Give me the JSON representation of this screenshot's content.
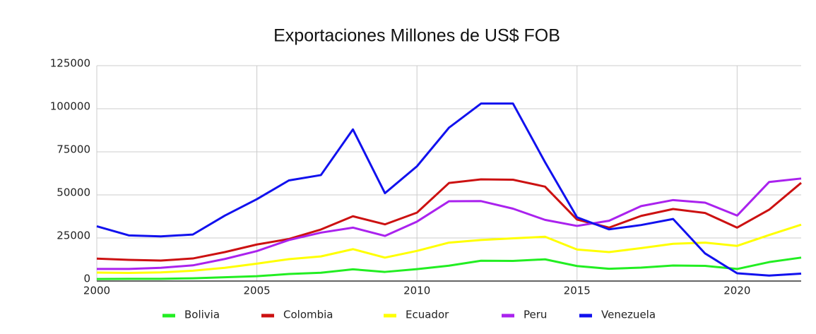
{
  "chart_data": {
    "type": "line",
    "title": "Exportaciones Millones de US$ FOB",
    "x": [
      2000,
      2001,
      2002,
      2003,
      2004,
      2005,
      2006,
      2007,
      2008,
      2009,
      2010,
      2011,
      2012,
      2013,
      2014,
      2015,
      2016,
      2017,
      2018,
      2019,
      2020,
      2021,
      2022
    ],
    "xlim": [
      2000,
      2022
    ],
    "xticks": [
      2000,
      2005,
      2010,
      2015,
      2020
    ],
    "ylim": [
      0,
      125000
    ],
    "yticks": [
      0,
      25000,
      50000,
      75000,
      100000,
      125000
    ],
    "grid": true,
    "legend": "bottom",
    "series": [
      {
        "name": "Bolivia",
        "color": "#22ee22",
        "values": [
          1200,
          1300,
          1300,
          1600,
          2200,
          2800,
          4100,
          4800,
          6800,
          5300,
          6900,
          8900,
          11800,
          11700,
          12600,
          8700,
          7100,
          7800,
          9000,
          8800,
          7000,
          11000,
          13600
        ]
      },
      {
        "name": "Colombia",
        "color": "#cc1111",
        "values": [
          13000,
          12300,
          11900,
          13100,
          16800,
          21200,
          24400,
          29900,
          37600,
          32900,
          39700,
          56900,
          59000,
          58800,
          54800,
          35700,
          31000,
          37800,
          41800,
          39500,
          31000,
          41400,
          57000
        ]
      },
      {
        "name": "Ecuador",
        "color": "#ffff00",
        "values": [
          4900,
          4700,
          5000,
          6000,
          7700,
          10100,
          12700,
          14300,
          18500,
          13600,
          17500,
          22300,
          23800,
          24800,
          25700,
          18300,
          16800,
          19100,
          21600,
          22300,
          20400,
          26700,
          32700
        ]
      },
      {
        "name": "Peru",
        "color": "#aa22ee",
        "values": [
          7000,
          7000,
          7700,
          9100,
          12800,
          17400,
          23800,
          28100,
          31000,
          26200,
          34500,
          46300,
          46400,
          42000,
          35500,
          32000,
          35000,
          43500,
          47000,
          45500,
          38000,
          57500,
          59500
        ]
      },
      {
        "name": "Venezuela",
        "color": "#1111ee",
        "values": [
          31800,
          26500,
          25900,
          27000,
          38000,
          47500,
          58400,
          61500,
          88000,
          51000,
          66600,
          89000,
          103000,
          103000,
          69000,
          37000,
          30000,
          32500,
          36000,
          16000,
          4500,
          3200,
          4300
        ]
      }
    ]
  }
}
